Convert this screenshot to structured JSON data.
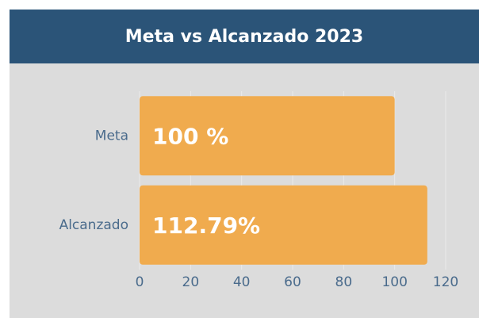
{
  "chart_data": {
    "type": "bar",
    "orientation": "horizontal",
    "title": "Meta vs Alcanzado 2023",
    "categories": [
      "Meta",
      "Alcanzado"
    ],
    "values": [
      100,
      112.79
    ],
    "value_labels": [
      "100 %",
      "112.79%"
    ],
    "color": "#f0ab4e",
    "xlim": [
      0,
      120
    ],
    "xticks": [
      0,
      20,
      40,
      60,
      80,
      100,
      120
    ],
    "grid": true
  }
}
